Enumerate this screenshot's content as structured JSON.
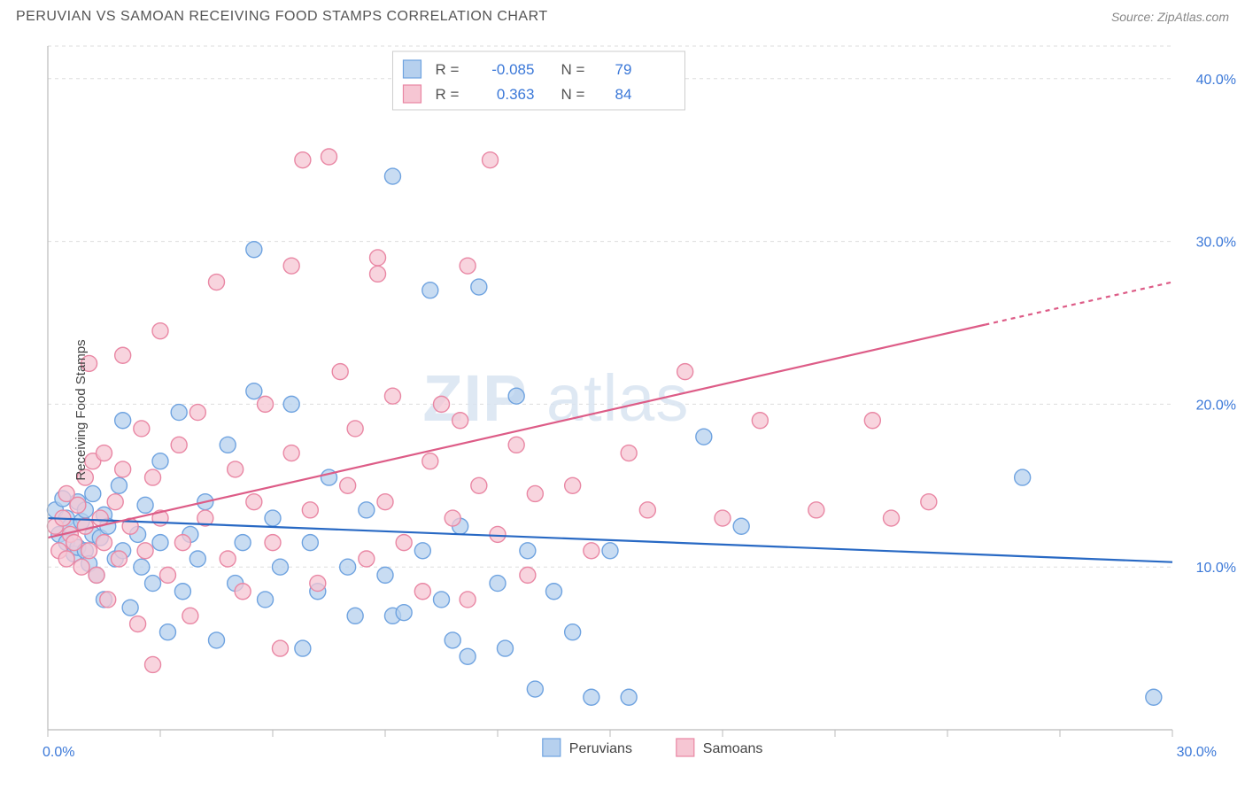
{
  "header": {
    "title": "PERUVIAN VS SAMOAN RECEIVING FOOD STAMPS CORRELATION CHART",
    "source_prefix": "Source: ",
    "source_link": "ZipAtlas.com"
  },
  "chart": {
    "type": "scatter",
    "ylabel": "Receiving Food Stamps",
    "background_color": "#ffffff",
    "grid_color": "#dddddd",
    "axis_color": "#bbbbbb",
    "xlim": [
      0,
      30
    ],
    "ylim": [
      0,
      42
    ],
    "xticks_label": [
      "0.0%",
      "30.0%"
    ],
    "xticks_major": [
      0,
      30
    ],
    "xticks_minor": [
      3,
      6,
      9,
      12,
      15,
      18,
      21,
      24,
      27
    ],
    "yticks": [
      10,
      20,
      30,
      40
    ],
    "ytick_labels": [
      "10.0%",
      "20.0%",
      "30.0%",
      "40.0%"
    ],
    "watermark": {
      "text1": "ZIP",
      "text2": "atlas"
    },
    "series": [
      {
        "name": "Peruvians",
        "color_fill": "#b6d0ee",
        "color_stroke": "#6fa3e0",
        "marker_r": 9,
        "trend": {
          "y_at_x0": 13.0,
          "y_at_xmax": 10.3,
          "color": "#2869c4"
        },
        "R": "-0.085",
        "N": "79",
        "points": [
          [
            0.2,
            13.5
          ],
          [
            0.3,
            12.0
          ],
          [
            0.4,
            14.2
          ],
          [
            0.5,
            11.5
          ],
          [
            0.5,
            13.0
          ],
          [
            0.6,
            12.5
          ],
          [
            0.7,
            10.8
          ],
          [
            0.8,
            14.0
          ],
          [
            0.8,
            11.2
          ],
          [
            0.9,
            12.8
          ],
          [
            1.0,
            13.5
          ],
          [
            1.0,
            11.0
          ],
          [
            1.1,
            10.2
          ],
          [
            1.2,
            12.0
          ],
          [
            1.2,
            14.5
          ],
          [
            1.3,
            9.5
          ],
          [
            1.4,
            11.8
          ],
          [
            1.5,
            13.2
          ],
          [
            1.5,
            8.0
          ],
          [
            1.6,
            12.5
          ],
          [
            1.8,
            10.5
          ],
          [
            1.9,
            15.0
          ],
          [
            2.0,
            11.0
          ],
          [
            2.0,
            19.0
          ],
          [
            2.2,
            7.5
          ],
          [
            2.4,
            12.0
          ],
          [
            2.5,
            10.0
          ],
          [
            2.6,
            13.8
          ],
          [
            2.8,
            9.0
          ],
          [
            3.0,
            11.5
          ],
          [
            3.0,
            16.5
          ],
          [
            3.2,
            6.0
          ],
          [
            3.5,
            19.5
          ],
          [
            3.6,
            8.5
          ],
          [
            3.8,
            12.0
          ],
          [
            4.0,
            10.5
          ],
          [
            4.2,
            14.0
          ],
          [
            4.5,
            5.5
          ],
          [
            4.8,
            17.5
          ],
          [
            5.0,
            9.0
          ],
          [
            5.2,
            11.5
          ],
          [
            5.5,
            20.8
          ],
          [
            5.5,
            29.5
          ],
          [
            5.8,
            8.0
          ],
          [
            6.0,
            13.0
          ],
          [
            6.2,
            10.0
          ],
          [
            6.5,
            20.0
          ],
          [
            6.8,
            5.0
          ],
          [
            7.0,
            11.5
          ],
          [
            7.2,
            8.5
          ],
          [
            7.5,
            15.5
          ],
          [
            8.0,
            10.0
          ],
          [
            8.2,
            7.0
          ],
          [
            8.5,
            13.5
          ],
          [
            9.0,
            9.5
          ],
          [
            9.2,
            34.0
          ],
          [
            9.2,
            7.0
          ],
          [
            9.5,
            7.2
          ],
          [
            10.0,
            11.0
          ],
          [
            10.2,
            27.0
          ],
          [
            10.5,
            8.0
          ],
          [
            10.8,
            5.5
          ],
          [
            11.0,
            12.5
          ],
          [
            11.2,
            4.5
          ],
          [
            11.5,
            27.2
          ],
          [
            12.0,
            9.0
          ],
          [
            12.2,
            5.0
          ],
          [
            12.5,
            20.5
          ],
          [
            12.8,
            11.0
          ],
          [
            13.0,
            2.5
          ],
          [
            13.5,
            8.5
          ],
          [
            14.0,
            6.0
          ],
          [
            14.5,
            2.0
          ],
          [
            15.0,
            11.0
          ],
          [
            15.5,
            2.0
          ],
          [
            17.5,
            18.0
          ],
          [
            18.5,
            12.5
          ],
          [
            26.0,
            15.5
          ],
          [
            29.5,
            2.0
          ]
        ]
      },
      {
        "name": "Samoans",
        "color_fill": "#f6c6d3",
        "color_stroke": "#e987a4",
        "marker_r": 9,
        "trend": {
          "y_at_x0": 11.8,
          "y_at_xmax": 27.5,
          "color": "#dd5c87",
          "dash_from_x": 25
        },
        "R": "0.363",
        "N": "84",
        "points": [
          [
            0.2,
            12.5
          ],
          [
            0.3,
            11.0
          ],
          [
            0.4,
            13.0
          ],
          [
            0.5,
            10.5
          ],
          [
            0.5,
            14.5
          ],
          [
            0.6,
            12.0
          ],
          [
            0.7,
            11.5
          ],
          [
            0.8,
            13.8
          ],
          [
            0.9,
            10.0
          ],
          [
            1.0,
            12.5
          ],
          [
            1.0,
            15.5
          ],
          [
            1.1,
            22.5
          ],
          [
            1.1,
            11.0
          ],
          [
            1.2,
            16.5
          ],
          [
            1.3,
            9.5
          ],
          [
            1.4,
            13.0
          ],
          [
            1.5,
            17.0
          ],
          [
            1.5,
            11.5
          ],
          [
            1.6,
            8.0
          ],
          [
            1.8,
            14.0
          ],
          [
            1.9,
            10.5
          ],
          [
            2.0,
            16.0
          ],
          [
            2.0,
            23.0
          ],
          [
            2.2,
            12.5
          ],
          [
            2.4,
            6.5
          ],
          [
            2.5,
            18.5
          ],
          [
            2.6,
            11.0
          ],
          [
            2.8,
            15.5
          ],
          [
            2.8,
            4.0
          ],
          [
            3.0,
            13.0
          ],
          [
            3.0,
            24.5
          ],
          [
            3.2,
            9.5
          ],
          [
            3.5,
            17.5
          ],
          [
            3.6,
            11.5
          ],
          [
            3.8,
            7.0
          ],
          [
            4.0,
            19.5
          ],
          [
            4.2,
            13.0
          ],
          [
            4.5,
            27.5
          ],
          [
            4.8,
            10.5
          ],
          [
            5.0,
            16.0
          ],
          [
            5.2,
            8.5
          ],
          [
            5.5,
            14.0
          ],
          [
            5.8,
            20.0
          ],
          [
            6.0,
            11.5
          ],
          [
            6.2,
            5.0
          ],
          [
            6.5,
            17.0
          ],
          [
            6.5,
            28.5
          ],
          [
            6.8,
            35.0
          ],
          [
            7.0,
            13.5
          ],
          [
            7.2,
            9.0
          ],
          [
            7.5,
            35.2
          ],
          [
            7.8,
            22.0
          ],
          [
            8.0,
            15.0
          ],
          [
            8.2,
            18.5
          ],
          [
            8.5,
            10.5
          ],
          [
            8.8,
            28.0
          ],
          [
            8.8,
            29.0
          ],
          [
            9.0,
            14.0
          ],
          [
            9.2,
            20.5
          ],
          [
            9.5,
            11.5
          ],
          [
            10.0,
            8.5
          ],
          [
            10.2,
            16.5
          ],
          [
            10.5,
            20.0
          ],
          [
            10.8,
            13.0
          ],
          [
            11.0,
            19.0
          ],
          [
            11.2,
            28.5
          ],
          [
            11.2,
            8.0
          ],
          [
            11.5,
            15.0
          ],
          [
            11.8,
            35.0
          ],
          [
            12.0,
            12.0
          ],
          [
            12.5,
            17.5
          ],
          [
            12.8,
            9.5
          ],
          [
            13.0,
            14.5
          ],
          [
            14.0,
            15.0
          ],
          [
            14.5,
            11.0
          ],
          [
            15.5,
            17.0
          ],
          [
            16.0,
            13.5
          ],
          [
            17.0,
            22.0
          ],
          [
            18.0,
            13.0
          ],
          [
            19.0,
            19.0
          ],
          [
            20.5,
            13.5
          ],
          [
            22.0,
            19.0
          ],
          [
            22.5,
            13.0
          ],
          [
            23.5,
            14.0
          ]
        ]
      }
    ],
    "stats_legend": {
      "rows": [
        {
          "swatch_fill": "#b6d0ee",
          "swatch_stroke": "#6fa3e0",
          "R": "-0.085",
          "N": "79"
        },
        {
          "swatch_fill": "#f6c6d3",
          "swatch_stroke": "#e987a4",
          "R": "0.363",
          "N": "84"
        }
      ],
      "R_label": "R =",
      "N_label": "N ="
    },
    "bottom_legend": [
      {
        "swatch_fill": "#b6d0ee",
        "swatch_stroke": "#6fa3e0",
        "label": "Peruvians"
      },
      {
        "swatch_fill": "#f6c6d3",
        "swatch_stroke": "#e987a4",
        "label": "Samoans"
      }
    ]
  }
}
